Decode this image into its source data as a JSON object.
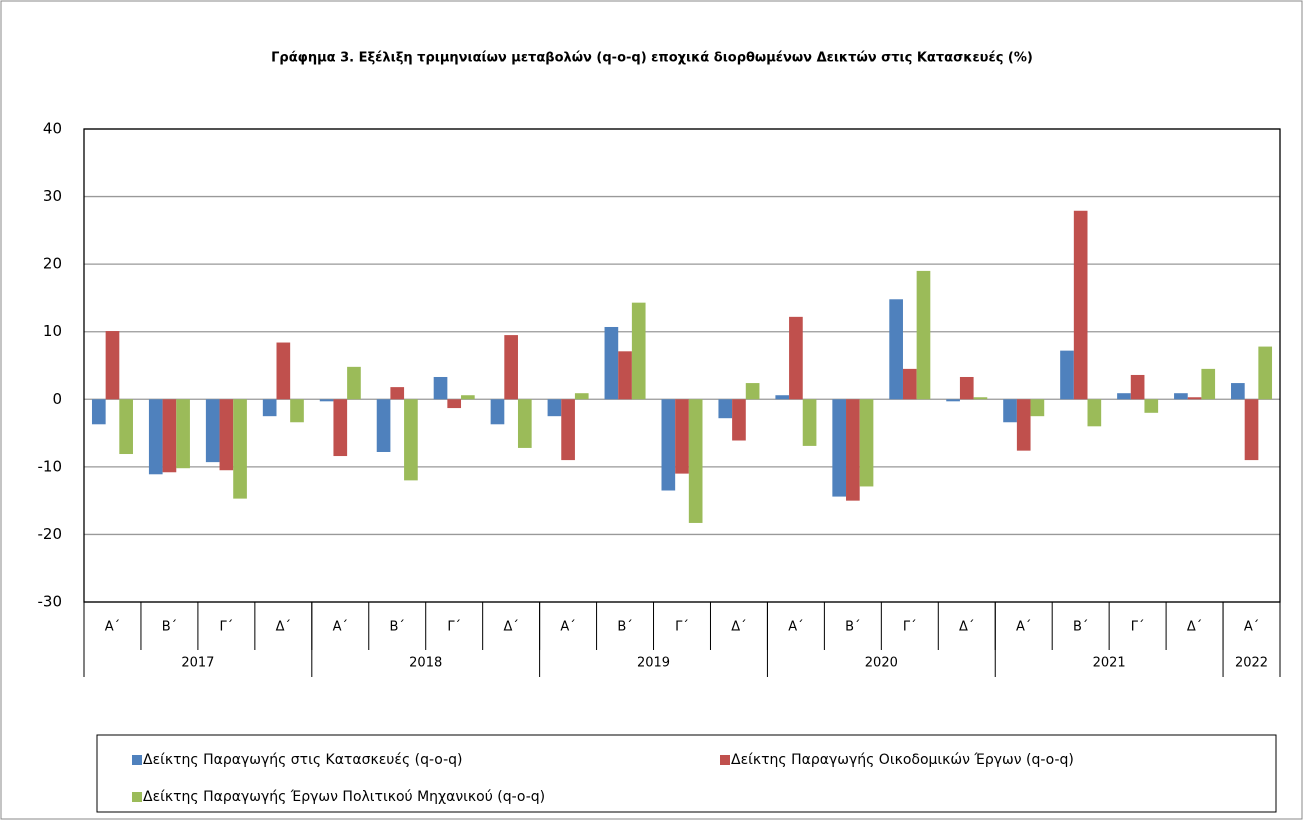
{
  "chart_data": {
    "type": "bar",
    "title": "Γράφημα 3. Εξέλιξη τριμηνιαίων μεταβολών (q-o-q) εποχικά διορθωμένων Δεικτών στις Κατασκευές (%)",
    "categories": [
      "Α΄",
      "Β΄",
      "Γ΄",
      "Δ΄",
      "Α΄",
      "Β΄",
      "Γ΄",
      "Δ΄",
      "Α΄",
      "Β΄",
      "Γ΄",
      "Δ΄",
      "Α΄",
      "Β΄",
      "Γ΄",
      "Δ΄",
      "Α΄",
      "Β΄",
      "Γ΄",
      "Δ΄",
      "Α΄"
    ],
    "groups": [
      {
        "label": "2017",
        "count": 4
      },
      {
        "label": "2018",
        "count": 4
      },
      {
        "label": "2019",
        "count": 4
      },
      {
        "label": "2020",
        "count": 4
      },
      {
        "label": "2021",
        "count": 4
      },
      {
        "label": "2022",
        "count": 1
      }
    ],
    "series": [
      {
        "name": "Δείκτης Παραγωγής στις Κατασκευές (q-o-q)",
        "color": "#4f81bd",
        "values": [
          -3.7,
          -11.1,
          -9.3,
          -2.5,
          -0.3,
          -7.8,
          3.3,
          -3.7,
          -2.5,
          10.7,
          -13.5,
          -2.8,
          0.6,
          -14.4,
          14.8,
          -0.3,
          -3.4,
          7.2,
          0.9,
          0.9,
          2.4
        ]
      },
      {
        "name": "Δείκτης Παραγωγής Οικοδομικών Έργων (q-o-q)",
        "color": "#c0504d",
        "values": [
          10.1,
          -10.8,
          -10.5,
          8.4,
          -8.4,
          1.8,
          -1.3,
          9.5,
          -9.0,
          7.1,
          -11.0,
          -6.1,
          12.2,
          -15.0,
          4.5,
          3.3,
          -7.6,
          27.9,
          3.6,
          0.3,
          -9.0
        ]
      },
      {
        "name": "Δείκτης Παραγωγής Έργων Πολιτικού Μηχανικού (q-o-q)",
        "color": "#9bbb59",
        "values": [
          -8.1,
          -10.2,
          -14.7,
          -3.4,
          4.8,
          -12.0,
          0.6,
          -7.2,
          0.9,
          14.3,
          -18.3,
          2.4,
          -6.9,
          -12.9,
          19.0,
          0.3,
          -2.5,
          -4.0,
          -2.0,
          4.5,
          7.8
        ]
      }
    ],
    "ylim": [
      -30,
      40
    ],
    "yticks": [
      -30,
      -20,
      -10,
      0,
      10,
      20,
      30,
      40
    ],
    "grid": true
  }
}
